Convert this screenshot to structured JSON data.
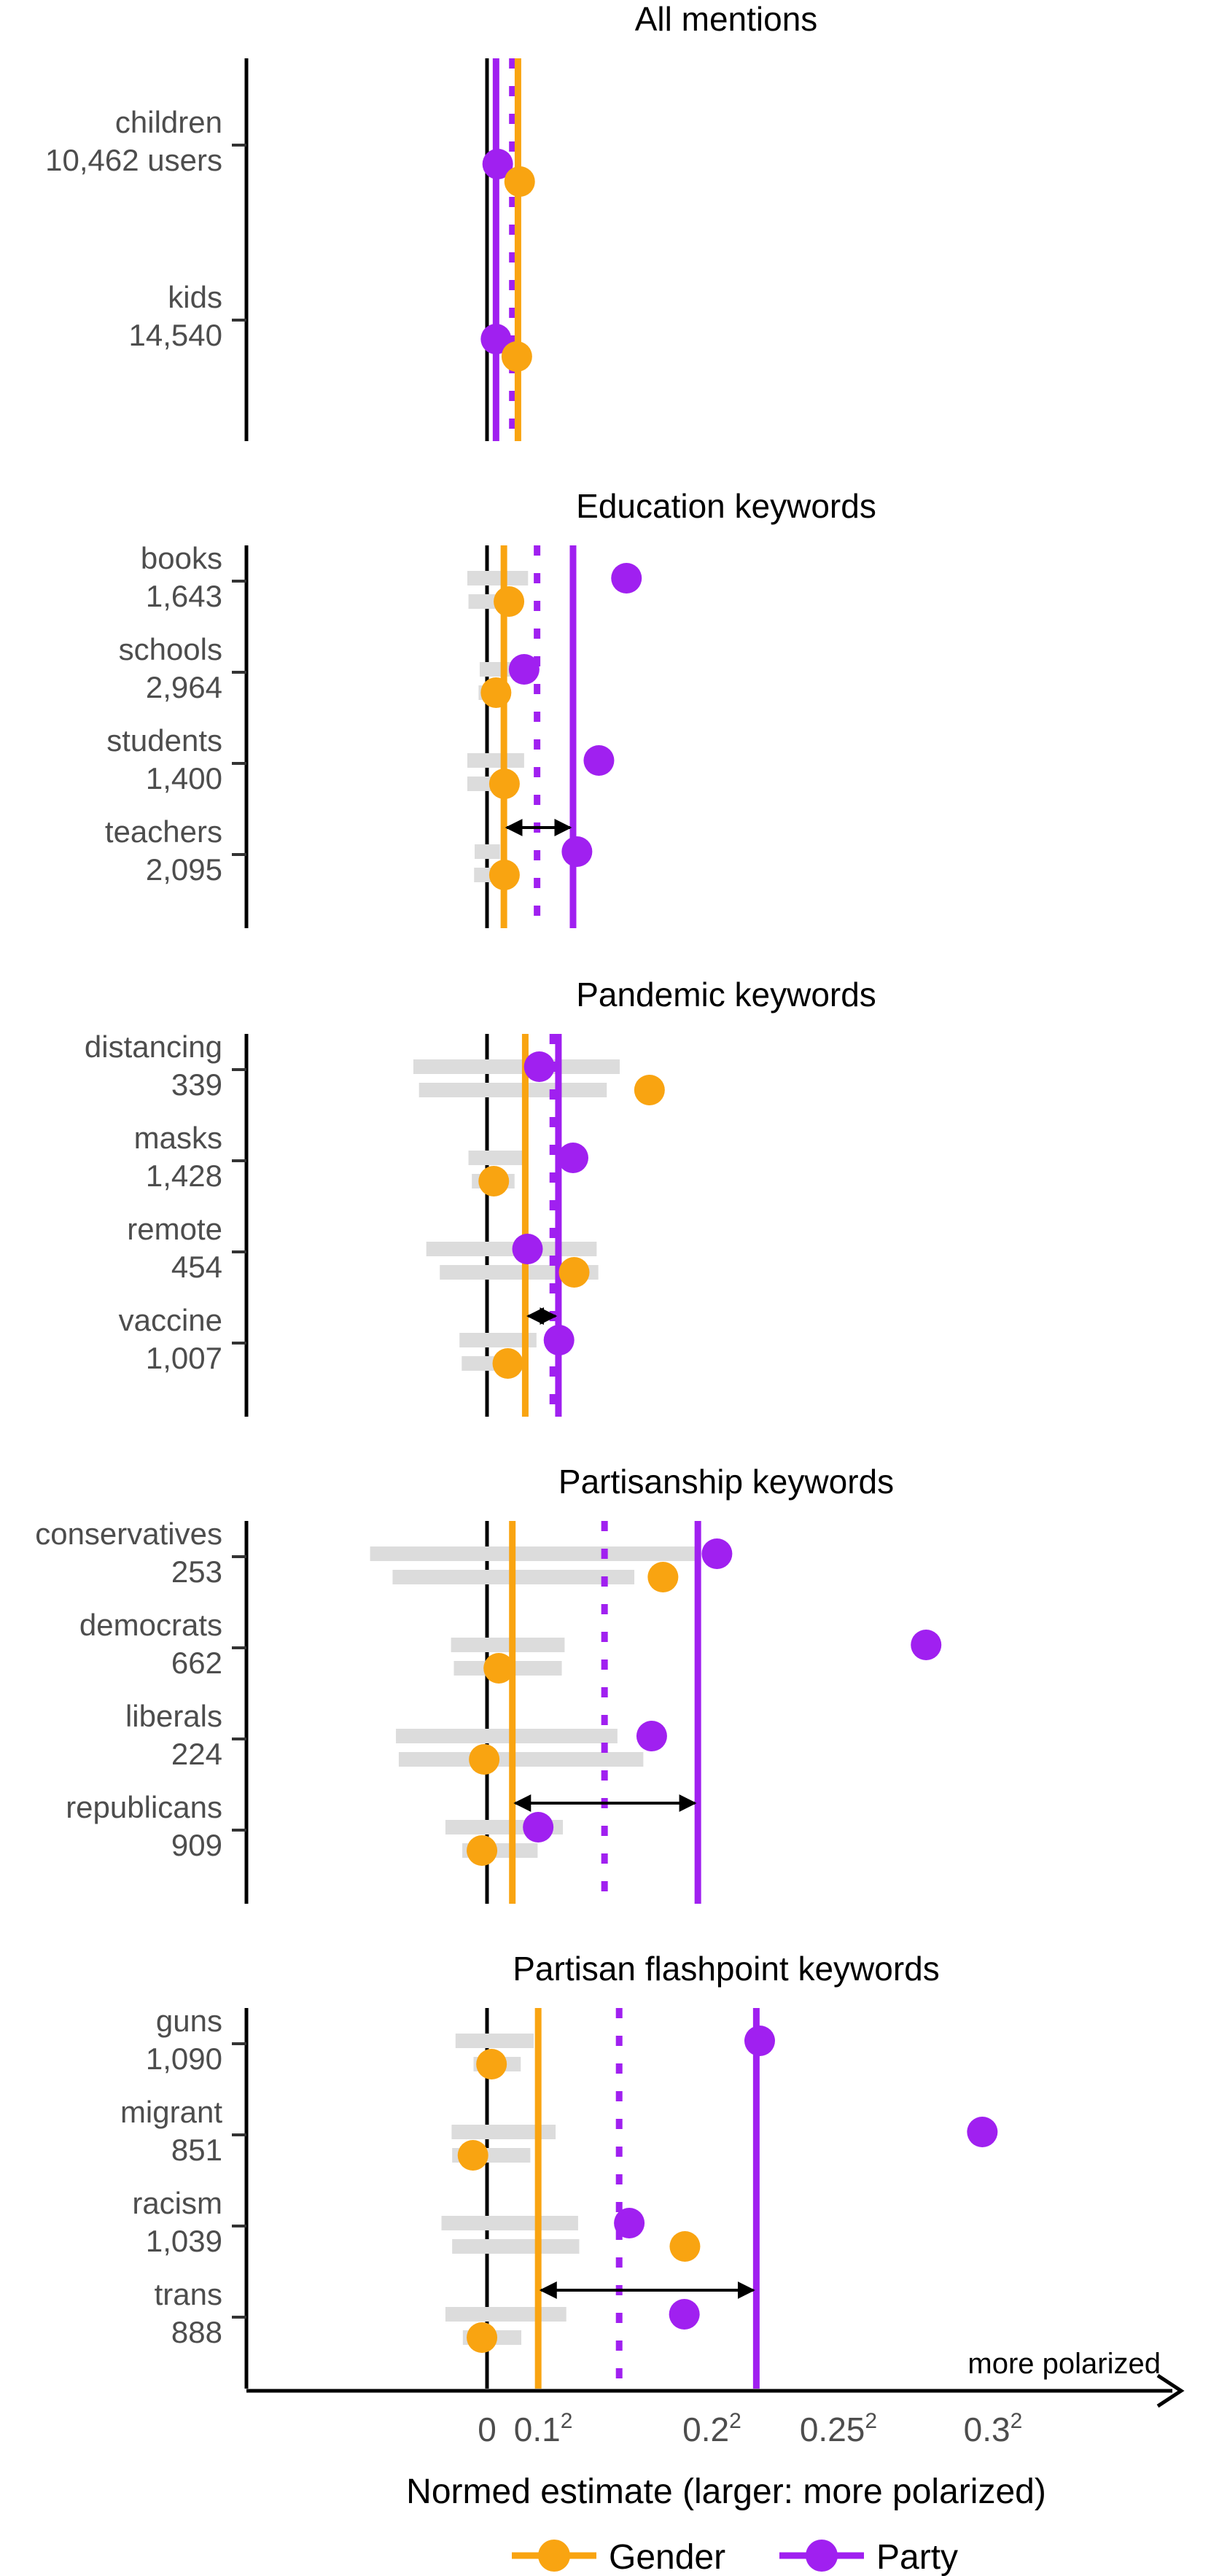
{
  "chart_data": {
    "type": "dot-range",
    "x_axis": {
      "label": "Normed estimate (larger: more polarized)",
      "ticks": [
        {
          "value": 0,
          "base": "0",
          "sup": ""
        },
        {
          "value": 0.01,
          "base": "0.1",
          "sup": "2"
        },
        {
          "value": 0.04,
          "base": "0.2",
          "sup": "2"
        },
        {
          "value": 0.0625,
          "base": "0.25",
          "sup": "2"
        },
        {
          "value": 0.09,
          "base": "0.3",
          "sup": "2"
        }
      ],
      "direction_note": "more polarized"
    },
    "colors": {
      "gender": "#F9A411",
      "party": "#A020F0",
      "ci": "#DCDCDC",
      "axis": "#000000"
    },
    "legend": [
      {
        "key": "gender",
        "label": "Gender"
      },
      {
        "key": "party",
        "label": "Party"
      }
    ],
    "panels": [
      {
        "title": "All mentions",
        "gender_ref": 0.0055,
        "party_ref": 0.0016,
        "party_dotted": 0.0045,
        "arrow": false,
        "rows": [
          {
            "label": "children",
            "count": "10,462 users",
            "gender": {
              "est": 0.0058,
              "ci": null
            },
            "party": {
              "est": 0.0019,
              "ci": null
            }
          },
          {
            "label": "kids",
            "count": "14,540",
            "gender": {
              "est": 0.0053,
              "ci": null
            },
            "party": {
              "est": 0.0016,
              "ci": null
            }
          }
        ]
      },
      {
        "title": "Education keywords",
        "gender_ref": 0.003,
        "party_ref": 0.0153,
        "party_dotted": 0.0089,
        "arrow": true,
        "rows": [
          {
            "label": "books",
            "count": "1,643",
            "gender": {
              "est": 0.0039,
              "ci": [
                -0.0033,
                0.0044
              ]
            },
            "party": {
              "est": 0.0248,
              "ci": [
                -0.0035,
                0.0073
              ]
            }
          },
          {
            "label": "schools",
            "count": "2,964",
            "gender": {
              "est": 0.0016,
              "ci": [
                -0.0015,
                0.0026
              ]
            },
            "party": {
              "est": 0.0066,
              "ci": [
                -0.0013,
                0.006
              ]
            }
          },
          {
            "label": "students",
            "count": "1,400",
            "gender": {
              "est": 0.0031,
              "ci": [
                -0.0035,
                0.0042
              ]
            },
            "party": {
              "est": 0.0199,
              "ci": [
                -0.0035,
                0.0066
              ]
            }
          },
          {
            "label": "teachers",
            "count": "2,095",
            "gender": {
              "est": 0.0031,
              "ci": [
                -0.0023,
                0.0032
              ]
            },
            "party": {
              "est": 0.016,
              "ci": [
                -0.0022,
                0.0023
              ]
            }
          }
        ]
      },
      {
        "title": "Pandemic keywords",
        "gender_ref": 0.0068,
        "party_ref": 0.0127,
        "party_dotted": 0.0117,
        "arrow": true,
        "rows": [
          {
            "label": "distancing",
            "count": "339",
            "gender": {
              "est": 0.0289,
              "ci": [
                -0.0121,
                0.0213
              ]
            },
            "party": {
              "est": 0.0093,
              "ci": [
                -0.0131,
                0.0236
              ]
            }
          },
          {
            "label": "masks",
            "count": "1,428",
            "gender": {
              "est": 0.0012,
              "ci": [
                -0.0027,
                0.0049
              ]
            },
            "party": {
              "est": 0.0153,
              "ci": [
                -0.0033,
                0.0064
              ]
            }
          },
          {
            "label": "remote",
            "count": "454",
            "gender": {
              "est": 0.0155,
              "ci": [
                -0.0084,
                0.0198
              ]
            },
            "party": {
              "est": 0.0072,
              "ci": [
                -0.0108,
                0.0195
              ]
            }
          },
          {
            "label": "vaccine",
            "count": "1,007",
            "gender": {
              "est": 0.0037,
              "ci": [
                -0.0045,
                0.0073
              ]
            },
            "party": {
              "est": 0.0128,
              "ci": [
                -0.0049,
                0.0088
              ]
            }
          }
        ]
      },
      {
        "title": "Partisanship keywords",
        "gender_ref": 0.0045,
        "party_ref": 0.0375,
        "party_dotted": 0.0209,
        "arrow": true,
        "rows": [
          {
            "label": "conservatives",
            "count": "253",
            "gender": {
              "est": 0.0313,
              "ci": [
                -0.0168,
                0.0262
              ]
            },
            "party": {
              "est": 0.0409,
              "ci": [
                -0.0208,
                0.038
              ]
            }
          },
          {
            "label": "democrats",
            "count": "662",
            "gender": {
              "est": 0.0021,
              "ci": [
                -0.0059,
                0.0133
              ]
            },
            "party": {
              "est": 0.0781,
              "ci": [
                -0.0064,
                0.0138
              ]
            }
          },
          {
            "label": "liberals",
            "count": "224",
            "gender": {
              "est": -0.0005,
              "ci": [
                -0.0157,
                0.0278
              ]
            },
            "party": {
              "est": 0.0293,
              "ci": [
                -0.0162,
                0.0232
              ]
            }
          },
          {
            "label": "republicans",
            "count": "909",
            "gender": {
              "est": -0.0009,
              "ci": [
                -0.0044,
                0.009
              ]
            },
            "party": {
              "est": 0.0091,
              "ci": [
                -0.0074,
                0.0135
              ]
            }
          }
        ]
      },
      {
        "title": "Partisan flashpoint keywords",
        "gender_ref": 0.0091,
        "party_ref": 0.0479,
        "party_dotted": 0.0235,
        "arrow": true,
        "rows": [
          {
            "label": "guns",
            "count": "1,090",
            "gender": {
              "est": 0.0008,
              "ci": [
                -0.0024,
                0.006
              ]
            },
            "party": {
              "est": 0.0485,
              "ci": [
                -0.0056,
                0.0083
              ]
            }
          },
          {
            "label": "migrant",
            "count": "851",
            "gender": {
              "est": -0.0025,
              "ci": [
                -0.0062,
                0.0077
              ]
            },
            "party": {
              "est": 0.0881,
              "ci": [
                -0.0063,
                0.0122
              ]
            }
          },
          {
            "label": "racism",
            "count": "1,039",
            "gender": {
              "est": 0.0352,
              "ci": [
                -0.0062,
                0.0164
              ]
            },
            "party": {
              "est": 0.0253,
              "ci": [
                -0.0081,
                0.0162
              ]
            }
          },
          {
            "label": "trans",
            "count": "888",
            "gender": {
              "est": -0.0009,
              "ci": [
                -0.0043,
                0.0061
              ]
            },
            "party": {
              "est": 0.0351,
              "ci": [
                -0.0074,
                0.0141
              ]
            }
          }
        ]
      }
    ]
  }
}
